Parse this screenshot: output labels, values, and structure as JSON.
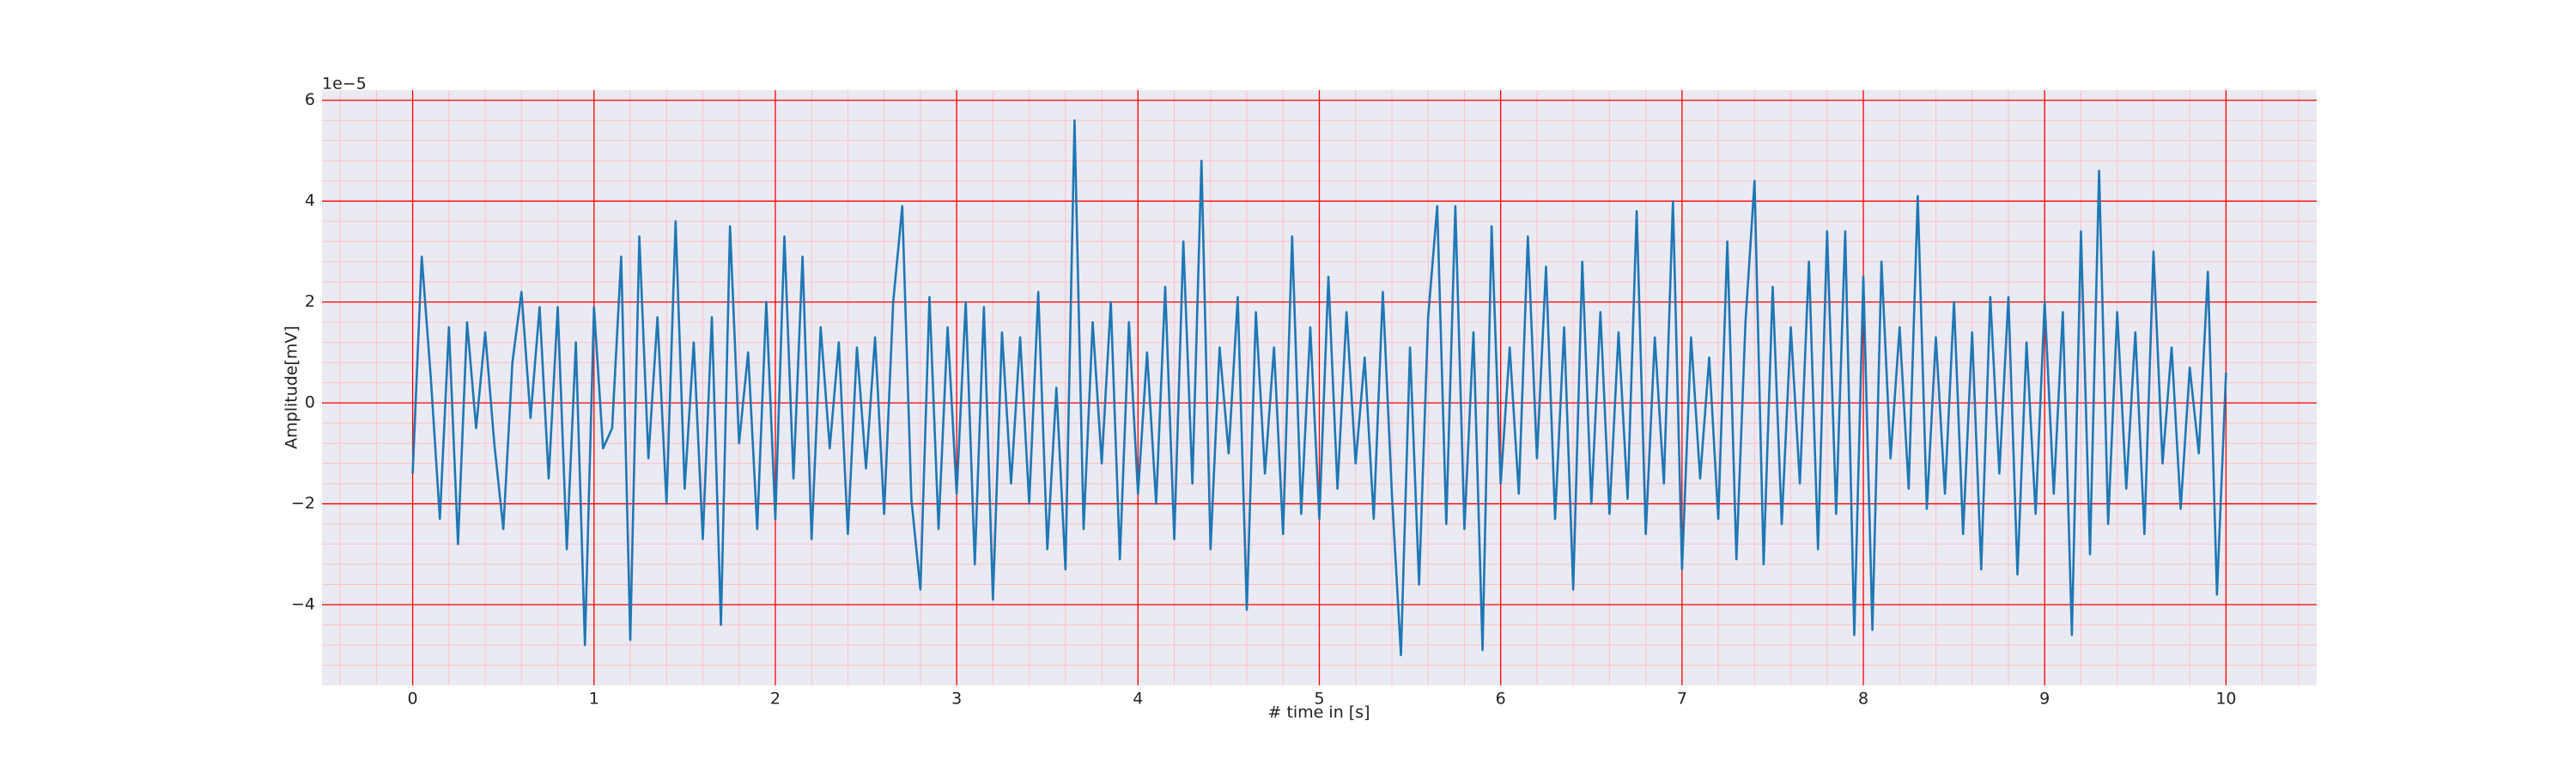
{
  "chart_data": {
    "type": "line",
    "xlabel": "# time in [s]",
    "ylabel": "Amplitude[mV]",
    "y_offset_label": "1e−5",
    "xlim": [
      -0.5,
      10.5
    ],
    "ylim": [
      -5.6,
      6.2
    ],
    "xticks": [
      0,
      1,
      2,
      3,
      4,
      5,
      6,
      7,
      8,
      9,
      10
    ],
    "yticks": [
      {
        "value": -4,
        "label": "−4"
      },
      {
        "value": -2,
        "label": "−2"
      },
      0,
      2,
      4,
      6
    ],
    "grid": true,
    "grid_color": "#ff0000",
    "minor_grid": true,
    "minor_grid_color": "#ffc0cb",
    "background": "#eaeaf2",
    "x": [
      0,
      0.05,
      0.1,
      0.15,
      0.2,
      0.25,
      0.3,
      0.35,
      0.4,
      0.45,
      0.5,
      0.55,
      0.6,
      0.65,
      0.7,
      0.75,
      0.8,
      0.85,
      0.9,
      0.95,
      1,
      1.05,
      1.1,
      1.15,
      1.2,
      1.25,
      1.3,
      1.35,
      1.4,
      1.45,
      1.5,
      1.55,
      1.6,
      1.65,
      1.7,
      1.75,
      1.8,
      1.85,
      1.9,
      1.95,
      2,
      2.05,
      2.1,
      2.15,
      2.2,
      2.25,
      2.3,
      2.35,
      2.4,
      2.45,
      2.5,
      2.55,
      2.6,
      2.65,
      2.7,
      2.75,
      2.8,
      2.85,
      2.9,
      2.95,
      3,
      3.05,
      3.1,
      3.15,
      3.2,
      3.25,
      3.3,
      3.35,
      3.4,
      3.45,
      3.5,
      3.55,
      3.6,
      3.65,
      3.7,
      3.75,
      3.8,
      3.85,
      3.9,
      3.95,
      4,
      4.05,
      4.1,
      4.15,
      4.2,
      4.25,
      4.3,
      4.35,
      4.4,
      4.45,
      4.5,
      4.55,
      4.6,
      4.65,
      4.7,
      4.75,
      4.8,
      4.85,
      4.9,
      4.95,
      5,
      5.05,
      5.1,
      5.15,
      5.2,
      5.25,
      5.3,
      5.35,
      5.4,
      5.45,
      5.5,
      5.55,
      5.6,
      5.65,
      5.7,
      5.75,
      5.8,
      5.85,
      5.9,
      5.95,
      6,
      6.05,
      6.1,
      6.15,
      6.2,
      6.25,
      6.3,
      6.35,
      6.4,
      6.45,
      6.5,
      6.55,
      6.6,
      6.65,
      6.7,
      6.75,
      6.8,
      6.85,
      6.9,
      6.95,
      7,
      7.05,
      7.1,
      7.15,
      7.2,
      7.25,
      7.3,
      7.35,
      7.4,
      7.45,
      7.5,
      7.55,
      7.6,
      7.65,
      7.7,
      7.75,
      7.8,
      7.85,
      7.9,
      7.95,
      8,
      8.05,
      8.1,
      8.15,
      8.2,
      8.25,
      8.3,
      8.35,
      8.4,
      8.45,
      8.5,
      8.55,
      8.6,
      8.65,
      8.7,
      8.75,
      8.8,
      8.85,
      8.9,
      8.95,
      9,
      9.05,
      9.1,
      9.15,
      9.2,
      9.25,
      9.3,
      9.35,
      9.4,
      9.45,
      9.5,
      9.55,
      9.6,
      9.65,
      9.7,
      9.75,
      9.8,
      9.85,
      9.9,
      9.95,
      10
    ],
    "series": [
      {
        "color": "#1f77b4",
        "values": [
          -1.4,
          2.9,
          0.5,
          -2.3,
          1.5,
          -2.8,
          1.6,
          -0.5,
          1.4,
          -0.8,
          -2.5,
          0.8,
          2.2,
          -0.3,
          1.9,
          -1.5,
          1.9,
          -2.9,
          1.2,
          -4.8,
          1.9,
          -0.9,
          -0.5,
          2.9,
          -4.7,
          3.3,
          -1.1,
          1.7,
          -2.0,
          3.6,
          -1.7,
          1.2,
          -2.7,
          1.7,
          -4.4,
          3.5,
          -0.8,
          1.0,
          -2.5,
          2.0,
          -2.3,
          3.3,
          -1.5,
          2.9,
          -2.7,
          1.5,
          -0.9,
          1.2,
          -2.6,
          1.1,
          -1.3,
          1.3,
          -2.2,
          2.0,
          3.9,
          -1.9,
          -3.7,
          2.1,
          -2.5,
          1.5,
          -1.8,
          2.0,
          -3.2,
          1.9,
          -3.9,
          1.4,
          -1.6,
          1.3,
          -2.0,
          2.2,
          -2.9,
          0.3,
          -3.3,
          5.6,
          -2.5,
          1.6,
          -1.2,
          2.0,
          -3.1,
          1.6,
          -1.8,
          1.0,
          -2.0,
          2.3,
          -2.7,
          3.2,
          -1.6,
          4.8,
          -2.9,
          1.1,
          -1.0,
          2.1,
          -4.1,
          1.8,
          -1.4,
          1.1,
          -2.6,
          3.3,
          -2.2,
          1.5,
          -2.3,
          2.5,
          -1.7,
          1.8,
          -1.2,
          0.9,
          -2.3,
          2.2,
          -1.8,
          -5.0,
          1.1,
          -3.6,
          1.7,
          3.9,
          -2.4,
          3.9,
          -2.5,
          1.4,
          -4.9,
          3.5,
          -1.6,
          1.1,
          -1.8,
          3.3,
          -1.1,
          2.7,
          -2.3,
          1.5,
          -3.7,
          2.8,
          -2.0,
          1.8,
          -2.2,
          1.4,
          -1.9,
          3.8,
          -2.6,
          1.3,
          -1.6,
          4.0,
          -3.3,
          1.3,
          -1.5,
          0.9,
          -2.3,
          3.2,
          -3.1,
          1.6,
          4.4,
          -3.2,
          2.3,
          -2.4,
          1.5,
          -1.6,
          2.8,
          -2.9,
          3.4,
          -2.2,
          3.4,
          -4.6,
          2.5,
          -4.5,
          2.8,
          -1.1,
          1.5,
          -1.7,
          4.1,
          -2.1,
          1.3,
          -1.8,
          2.0,
          -2.6,
          1.4,
          -3.3,
          2.1,
          -1.4,
          2.1,
          -3.4,
          1.2,
          -2.2,
          2.0,
          -1.8,
          1.8,
          -4.6,
          3.4,
          -3.0,
          4.6,
          -2.4,
          1.8,
          -1.7,
          1.4,
          -2.6,
          3.0,
          -1.2,
          1.1,
          -2.1,
          0.7,
          -1.0,
          2.6,
          -3.8,
          0.6
        ]
      }
    ]
  }
}
